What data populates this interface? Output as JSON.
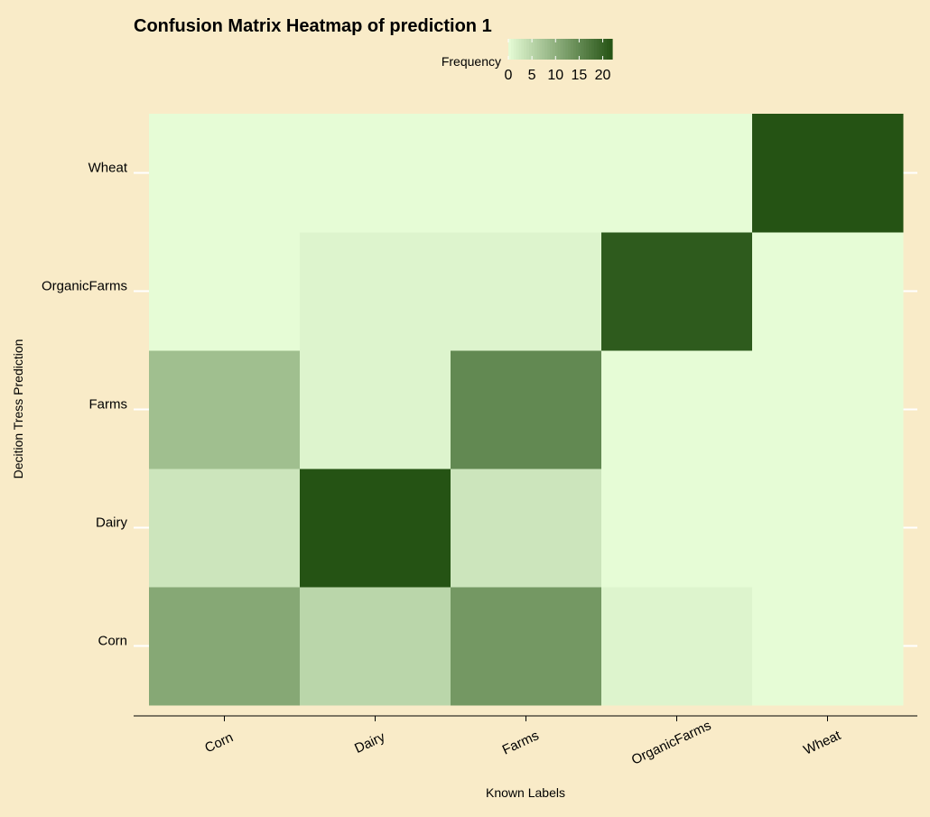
{
  "chart_data": {
    "type": "heatmap",
    "title": "Confusion Matrix Heatmap of prediction 1",
    "xlabel": "Known Labels",
    "ylabel": "Decition Tress Prediction",
    "x_categories": [
      "Corn",
      "Dairy",
      "Farms",
      "OrganicFarms",
      "Wheat"
    ],
    "y_categories": [
      "Corn",
      "Dairy",
      "Farms",
      "OrganicFarms",
      "Wheat"
    ],
    "values": [
      [
        11,
        5,
        13,
        1,
        0
      ],
      [
        3,
        22,
        3,
        0,
        0
      ],
      [
        8,
        1,
        15,
        0,
        0
      ],
      [
        0,
        1,
        1,
        21,
        0
      ],
      [
        0,
        0,
        0,
        0,
        22
      ]
    ],
    "legend": {
      "title": "Frequency",
      "position": "top",
      "ticks": [
        0,
        5,
        10,
        15,
        20
      ],
      "range": [
        0,
        22
      ]
    },
    "colors": {
      "low": "#e6fcd6",
      "high": "#255314",
      "background": "#f9ebc8"
    },
    "grid": true
  }
}
